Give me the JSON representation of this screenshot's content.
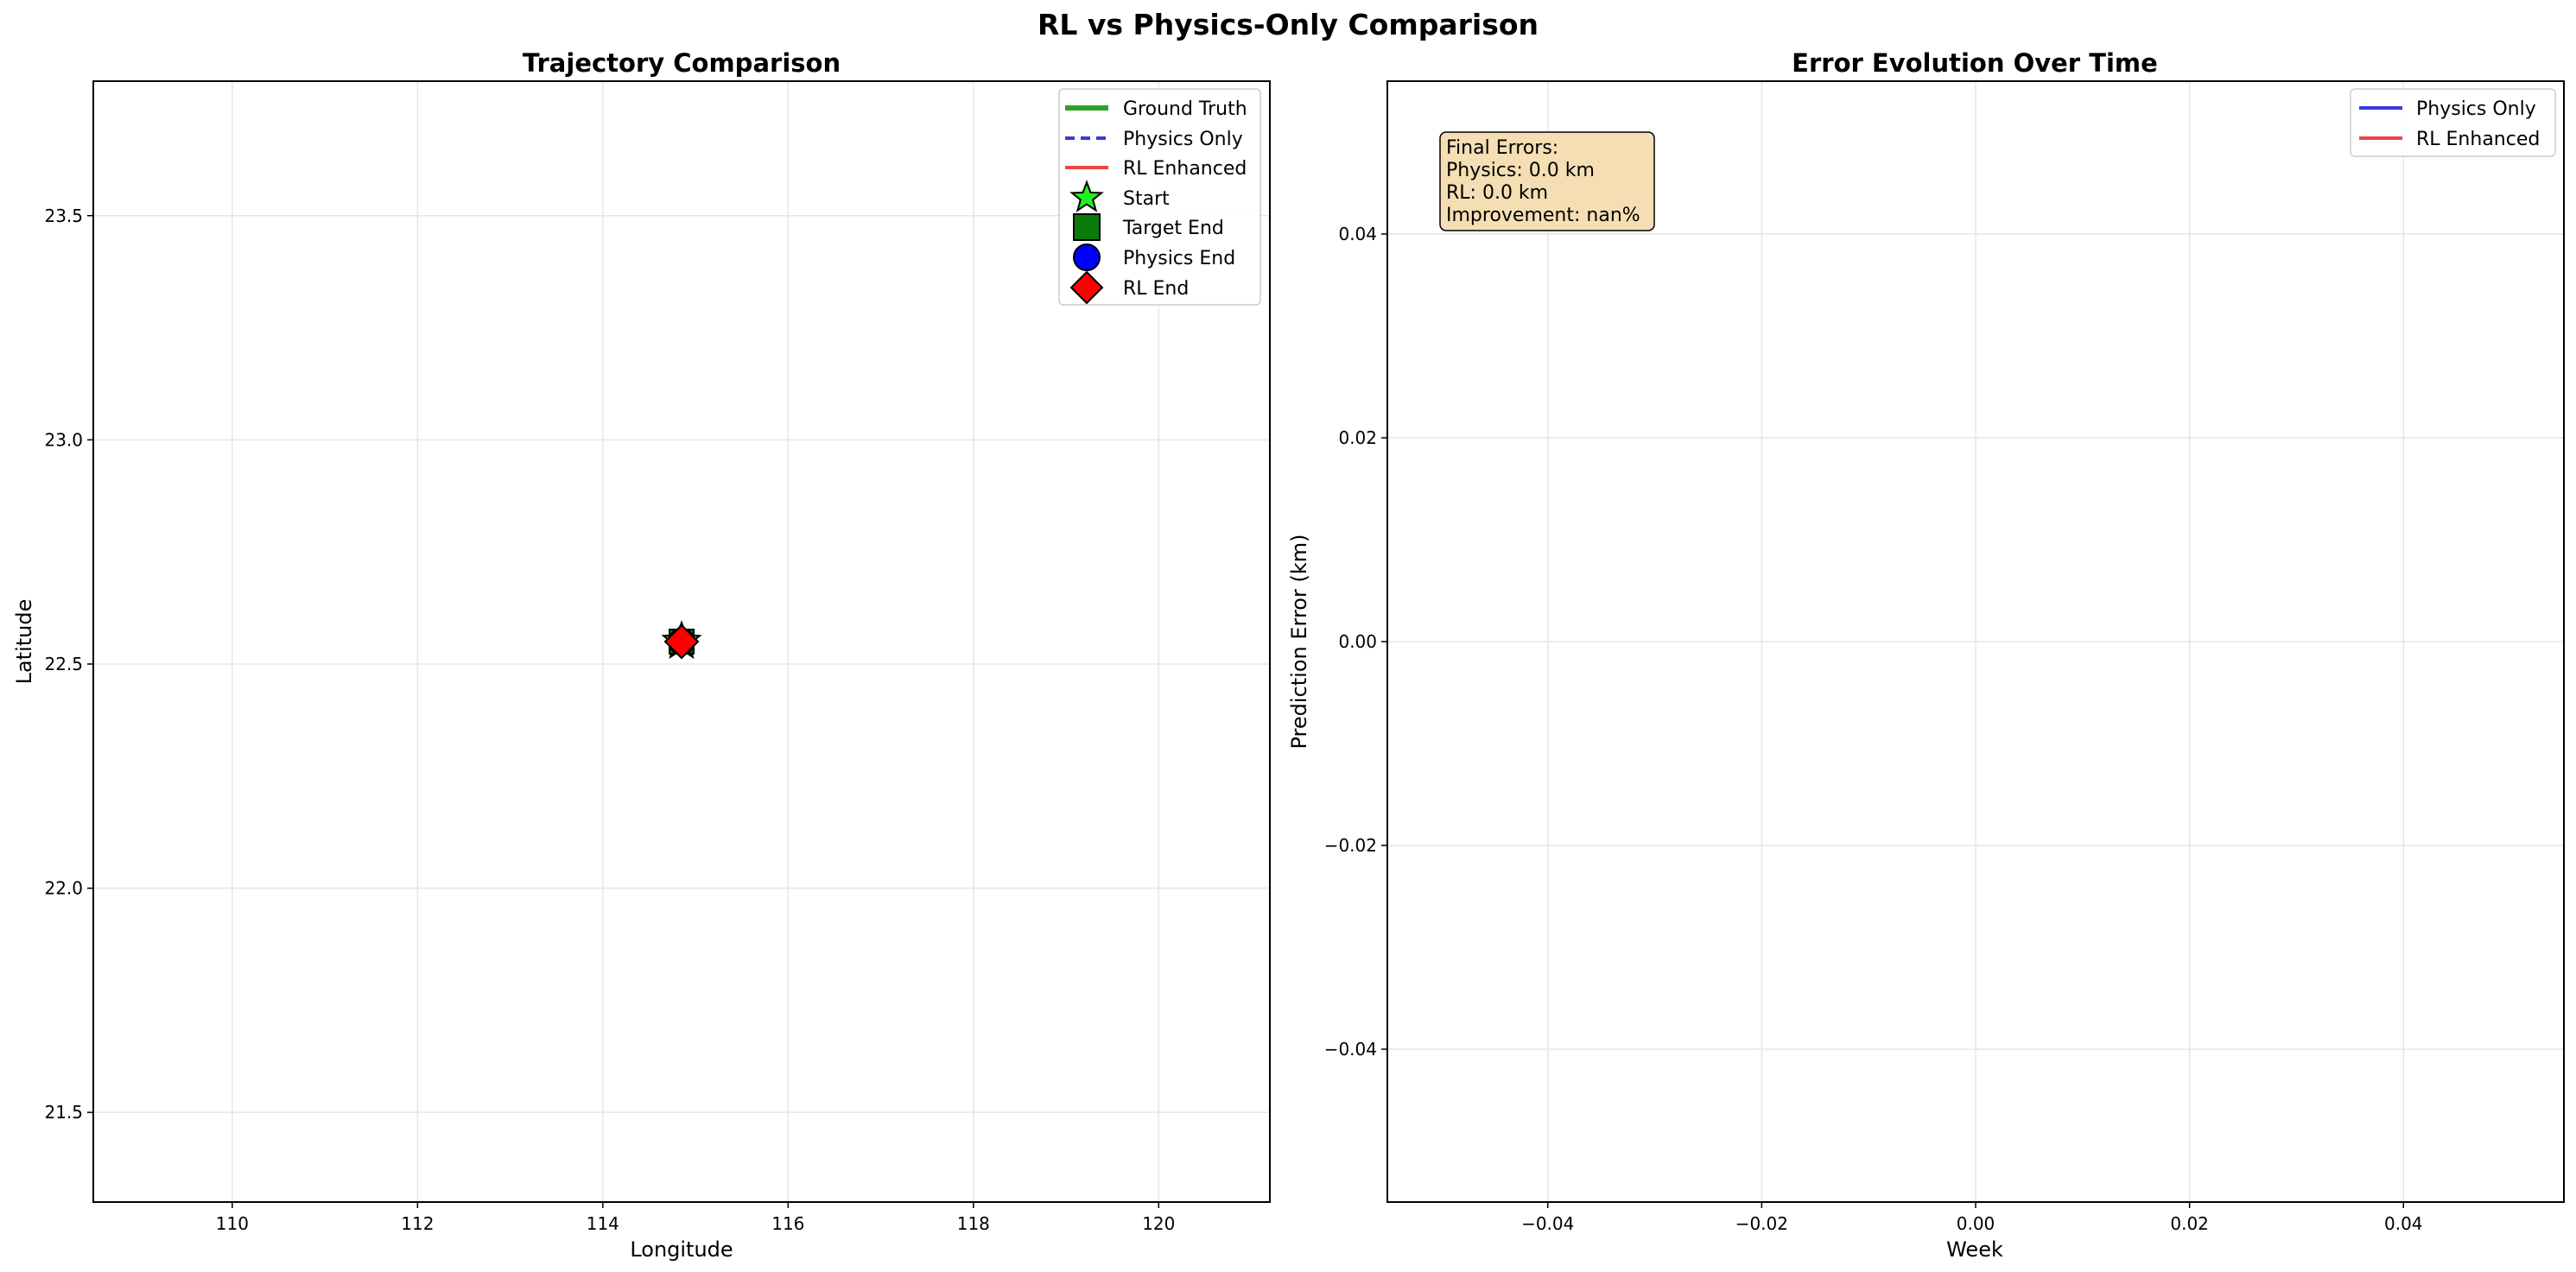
{
  "figure": {
    "suptitle": "RL vs Physics-Only Comparison"
  },
  "colors": {
    "ground_truth": "#2ca02c",
    "physics": "#3b3bdb",
    "rl": "#ee4444",
    "start": "#22ee22",
    "target_end": "#0a7a0a",
    "physics_end": "#0000ff",
    "rl_end": "#ff0000",
    "grid": "#e6e6e6",
    "annotation_bg": "#f5deb3"
  },
  "chart_data": [
    {
      "type": "line",
      "title": "Trajectory Comparison",
      "xlabel": "Longitude",
      "ylabel": "Latitude",
      "xlim": [
        108.5,
        121.2
      ],
      "ylim": [
        21.3,
        23.8
      ],
      "xticks": [
        110,
        112,
        114,
        116,
        118,
        120
      ],
      "xtick_labels": [
        "110",
        "112",
        "114",
        "116",
        "118",
        "120"
      ],
      "yticks": [
        21.5,
        22.0,
        22.5,
        23.0,
        23.5
      ],
      "ytick_labels": [
        "21.5",
        "22.0",
        "22.5",
        "23.0",
        "23.5"
      ],
      "grid": true,
      "legend_position": "top-right",
      "series": [
        {
          "name": "Ground Truth",
          "kind": "line",
          "style": "solid",
          "color": "#2ca02c",
          "points": [
            [
              114.85,
              22.55
            ]
          ]
        },
        {
          "name": "Physics Only",
          "kind": "line",
          "style": "dashed",
          "color": "#3b3bdb",
          "points": [
            [
              114.85,
              22.55
            ]
          ]
        },
        {
          "name": "RL Enhanced",
          "kind": "line",
          "style": "solid",
          "color": "#ee4444",
          "points": [
            [
              114.85,
              22.55
            ]
          ]
        }
      ],
      "markers": [
        {
          "name": "Start",
          "shape": "star",
          "color": "#22ee22",
          "x": 114.85,
          "y": 22.55
        },
        {
          "name": "Target End",
          "shape": "square",
          "color": "#0a7a0a",
          "x": 114.85,
          "y": 22.55
        },
        {
          "name": "Physics End",
          "shape": "circle",
          "color": "#0000ff",
          "x": 114.85,
          "y": 22.55
        },
        {
          "name": "RL End",
          "shape": "diamond",
          "color": "#ff0000",
          "x": 114.85,
          "y": 22.55
        }
      ]
    },
    {
      "type": "line",
      "title": "Error Evolution Over Time",
      "xlabel": "Week",
      "ylabel": "Prediction Error (km)",
      "xlim": [
        -0.055,
        0.055
      ],
      "ylim": [
        -0.055,
        0.055
      ],
      "xticks": [
        -0.04,
        -0.02,
        0.0,
        0.02,
        0.04
      ],
      "xtick_labels": [
        "−0.04",
        "−0.02",
        "0.00",
        "0.02",
        "0.04"
      ],
      "yticks": [
        -0.04,
        -0.02,
        0.0,
        0.02,
        0.04
      ],
      "ytick_labels": [
        "−0.04",
        "−0.02",
        "0.00",
        "0.02",
        "0.04"
      ],
      "grid": true,
      "legend_position": "top-right",
      "series": [
        {
          "name": "Physics Only",
          "kind": "line",
          "style": "solid",
          "color": "#3b3bdb",
          "points": []
        },
        {
          "name": "RL Enhanced",
          "kind": "line",
          "style": "solid",
          "color": "#ee4444",
          "points": []
        }
      ],
      "annotation": [
        "Final Errors:",
        "Physics: 0.0 km",
        "RL: 0.0 km",
        "Improvement: nan%"
      ]
    }
  ]
}
